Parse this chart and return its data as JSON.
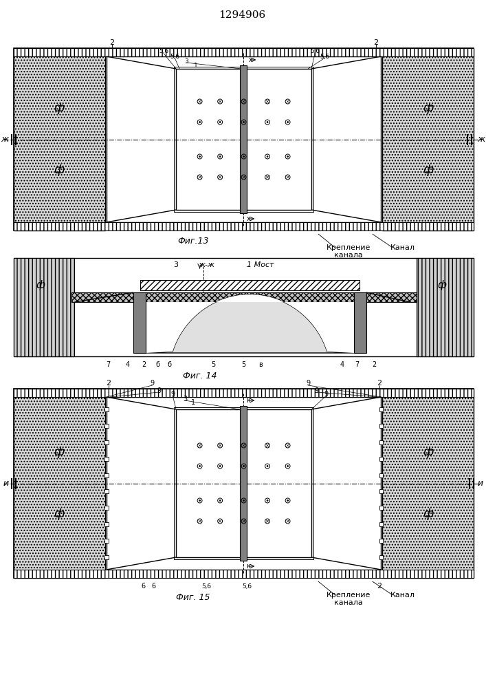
{
  "title": "1294906",
  "bg_color": "#ffffff",
  "fig1_label": "Фиг.13",
  "fig2_label": "Фиг. 14",
  "fig3_label": "Фиг. 15",
  "caption_krep1": "Крепление",
  "caption_krep2": "канала",
  "caption_kanal": "Канал",
  "label_zh_zh": "ж-ж",
  "label_1most": "1 Мост"
}
